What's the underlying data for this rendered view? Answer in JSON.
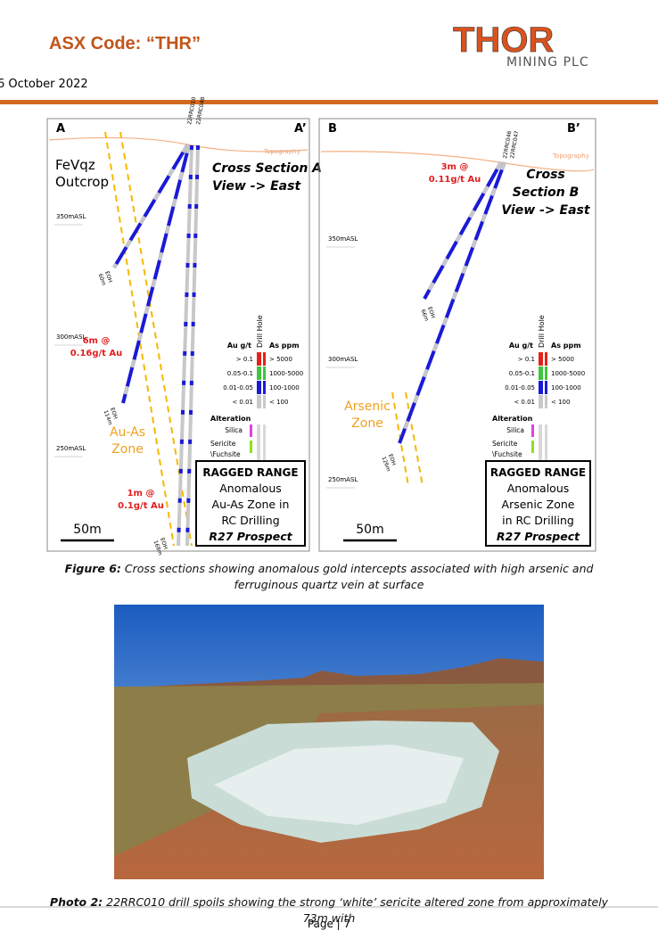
{
  "header": {
    "asx_code": "ASX Code: “THR”",
    "date": "6 October 2022",
    "logo_name": "THOR",
    "logo_sub": "MINING PLC"
  },
  "figure": {
    "panels": [
      {
        "left_label": "A",
        "right_label": "A’",
        "topography": "Topography",
        "outcrop": [
          "FeVqz",
          "Outcrop"
        ],
        "section_title": [
          "Cross Section A",
          "View -> East"
        ],
        "elevations": [
          "350mASL",
          "300mASL",
          "250mASL"
        ],
        "intercepts": [
          [
            "6m @",
            "0.16g/t Au"
          ],
          [
            "1m @",
            "0.1g/t Au"
          ]
        ],
        "zone": [
          "Au-As",
          "Zone"
        ],
        "holes": [
          "22RRC010",
          "22RRC048"
        ],
        "eoh": [
          [
            "EOH",
            "60m"
          ],
          [
            "EOH",
            "114m"
          ],
          [
            "EOH",
            "168m"
          ]
        ],
        "box": [
          "RAGGED RANGE",
          "Anomalous",
          "Au-As Zone in",
          "RC Drilling",
          "R27 Prospect"
        ],
        "scale": "50m"
      },
      {
        "left_label": "B",
        "right_label": "B’",
        "topography": "Topography",
        "outcrop": [],
        "section_title": [
          "Cross",
          "Section B",
          "View -> East"
        ],
        "elevations": [
          "350mASL",
          "300mASL",
          "250mASL"
        ],
        "intercepts": [
          [
            "3m @",
            "0.11g/t Au"
          ]
        ],
        "zone": [
          "Arsenic",
          "Zone"
        ],
        "holes": [
          "22RRC046",
          "22RRC047"
        ],
        "eoh": [
          [
            "EOH",
            "66m"
          ],
          [
            "EOH",
            "126m"
          ]
        ],
        "box": [
          "RAGGED RANGE",
          "Anomalous",
          "Arsenic Zone",
          "in RC Drilling",
          "R27 Prospect"
        ],
        "scale": "50m"
      }
    ],
    "legend": {
      "au_title": "Au g/t",
      "hole_title": "Drill Hole",
      "as_title": "As ppm",
      "rows": [
        {
          "au": "> 0.1",
          "as": "> 5000",
          "color": "#e32219"
        },
        {
          "au": "0.05-0.1",
          "as": "1000-5000",
          "color": "#3ec43e"
        },
        {
          "au": "0.01-0.05",
          "as": "100-1000",
          "color": "#1a1ad6"
        },
        {
          "au": "< 0.01",
          "as": "< 100",
          "color": "#c8c8c8"
        }
      ],
      "alteration": "Alteration",
      "silica": "Silica",
      "silica_color": "#e040e0",
      "sericite": [
        "Sericite",
        "\\Fuchsite"
      ],
      "sericite_color": "#90e020"
    },
    "caption_label": "Figure 6:",
    "caption_text": "Cross sections showing anomalous gold intercepts associated with high arsenic and ferruginous quartz vein at surface"
  },
  "photo": {
    "caption_label": "Photo 2:",
    "caption_text": "22RRC010 drill spoils showing the strong ‘white’ sericite altered zone from approximately 73m with"
  },
  "footer": {
    "page": "Page | 7"
  }
}
